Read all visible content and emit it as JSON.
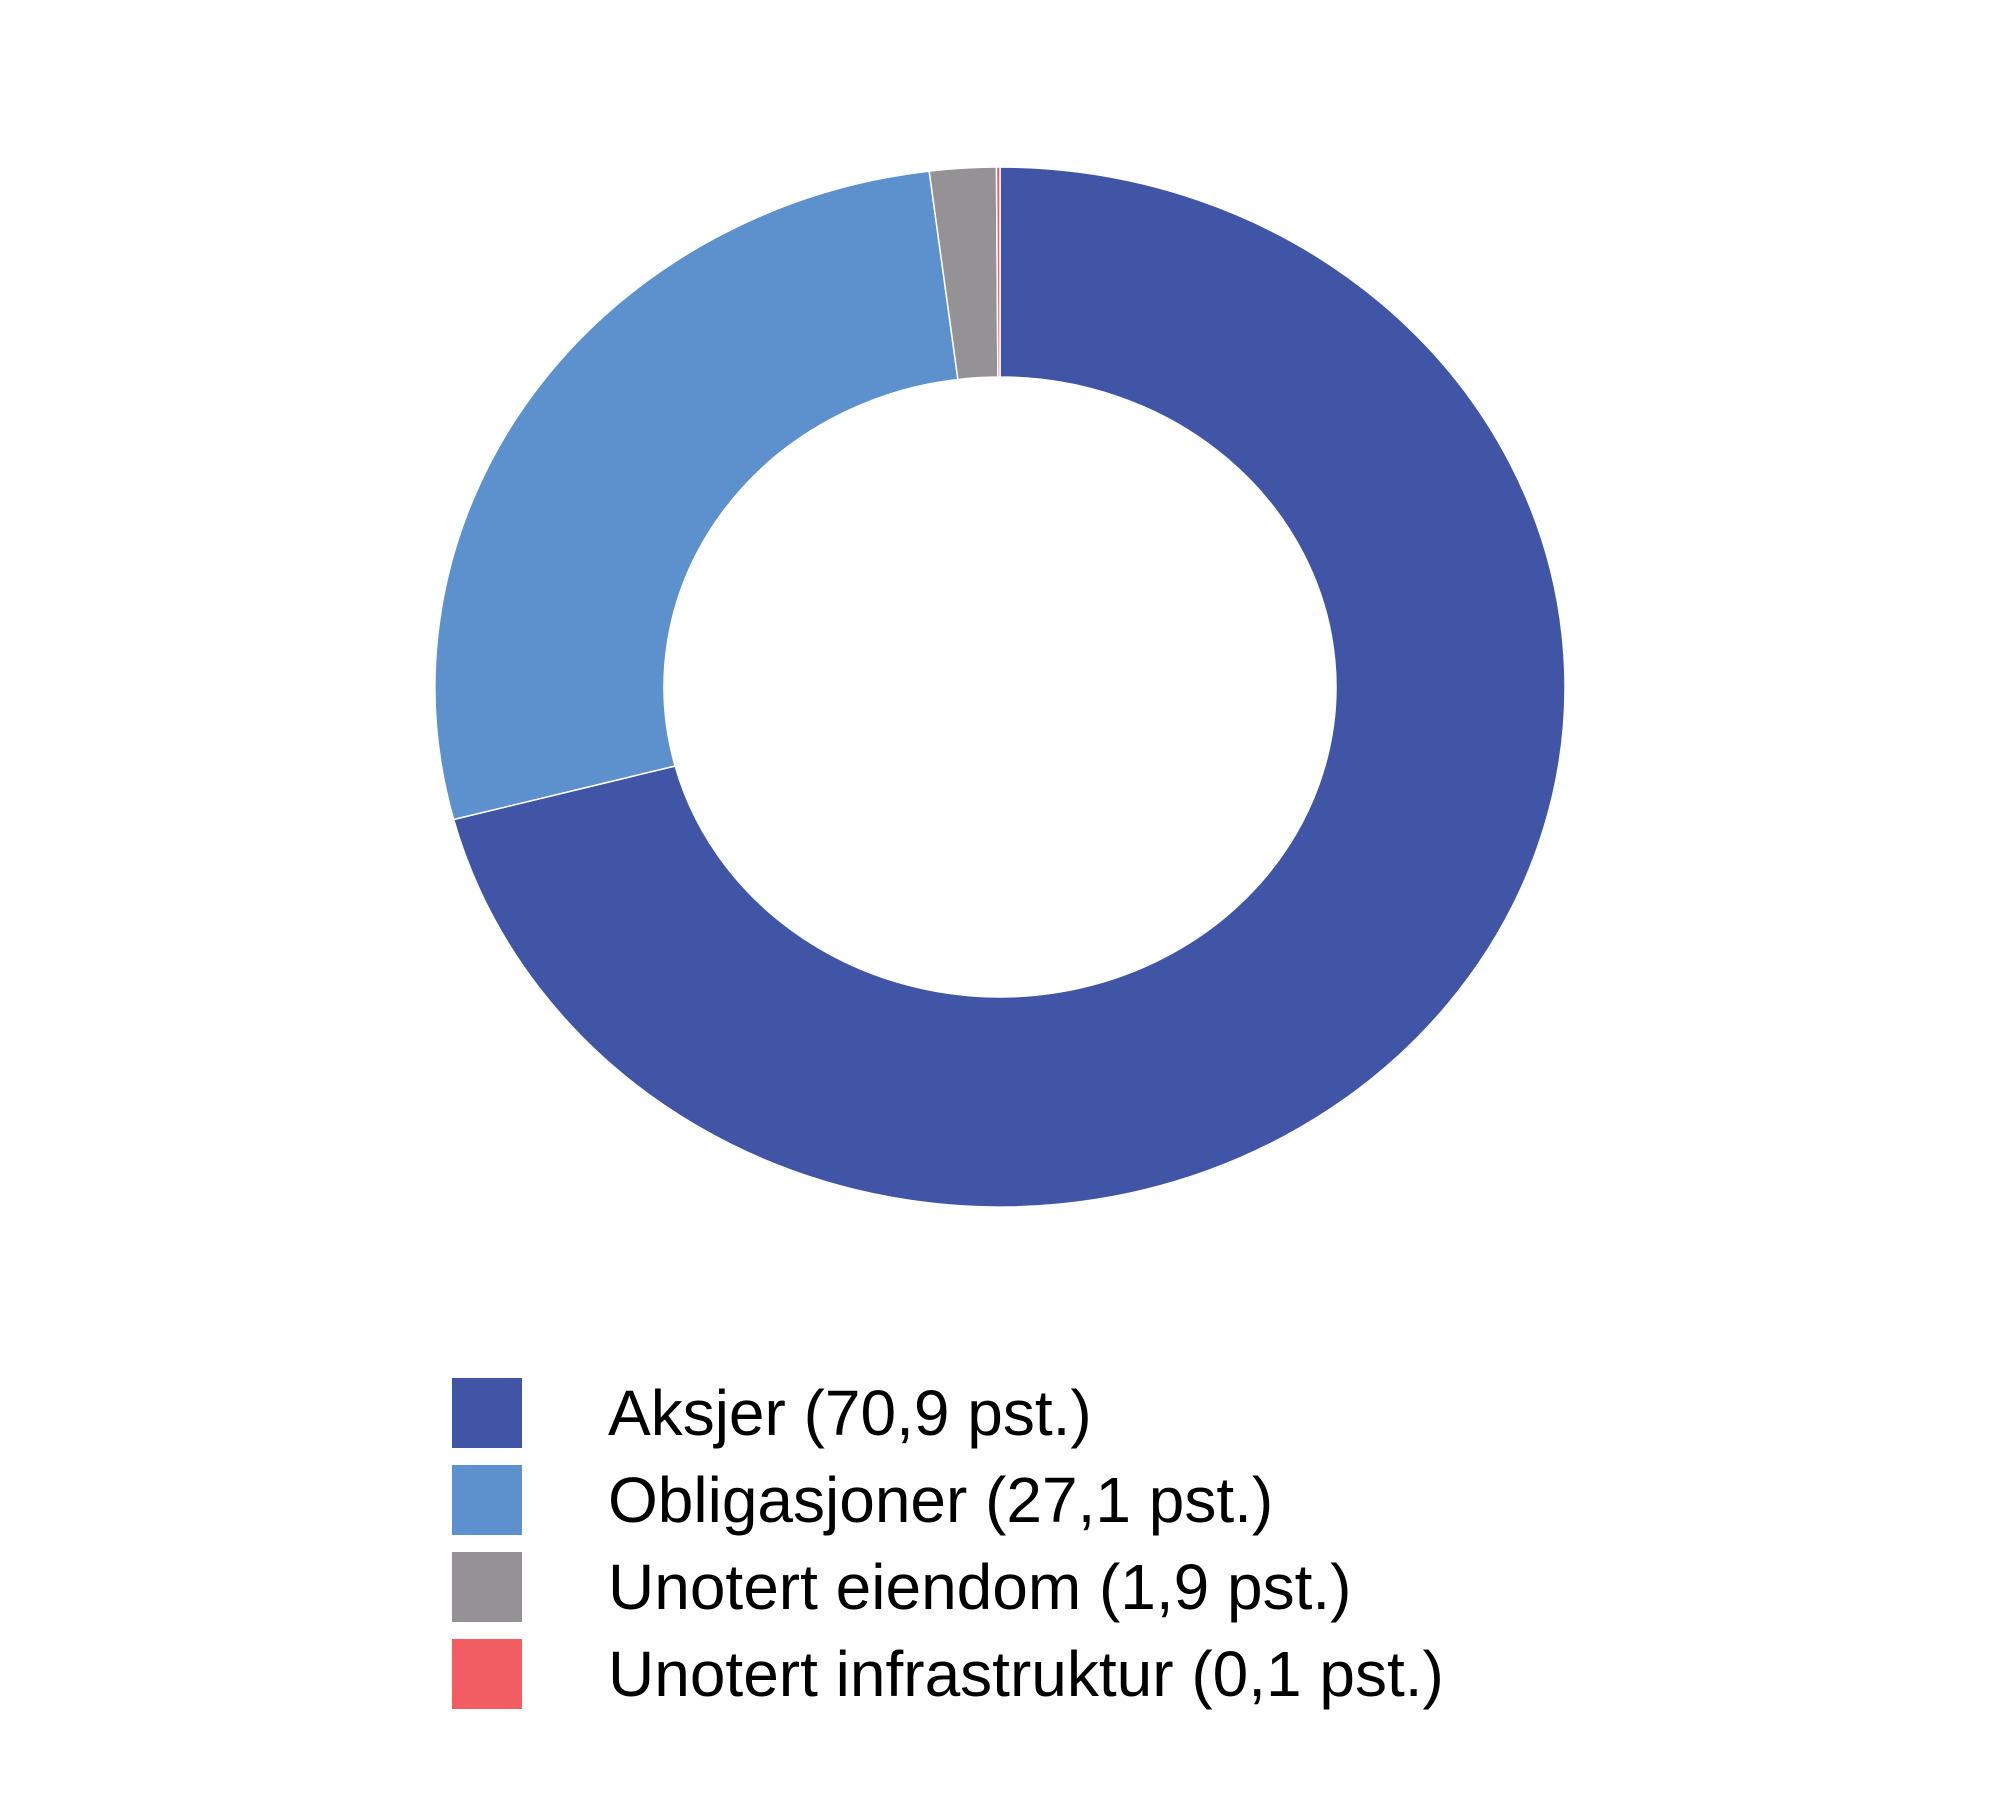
{
  "chart_data": {
    "type": "pie",
    "variant": "donut",
    "title": "",
    "direction": "clockwise",
    "start_angle_deg": 0,
    "inner_radius_ratio": 0.595,
    "legend_position": "bottom-left",
    "background_color": "#ffffff",
    "separator_color": "#ffffff",
    "slices": [
      {
        "label": "Aksjer",
        "value": 70.9,
        "legend_label": "Aksjer (70,9 pst.)",
        "color": "#4055A6"
      },
      {
        "label": "Obligasjoner",
        "value": 27.1,
        "legend_label": "Obligasjoner (27,1 pst.)",
        "color": "#5C91CE"
      },
      {
        "label": "Unotert eiendom",
        "value": 1.9,
        "legend_label": "Unotert eiendom (1,9 pst.)",
        "color": "#949294"
      },
      {
        "label": "Unotert infrastruktur",
        "value": 0.1,
        "legend_label": "Unotert infrastruktur (0,1 pst.)",
        "color": "#F25D62"
      }
    ]
  }
}
